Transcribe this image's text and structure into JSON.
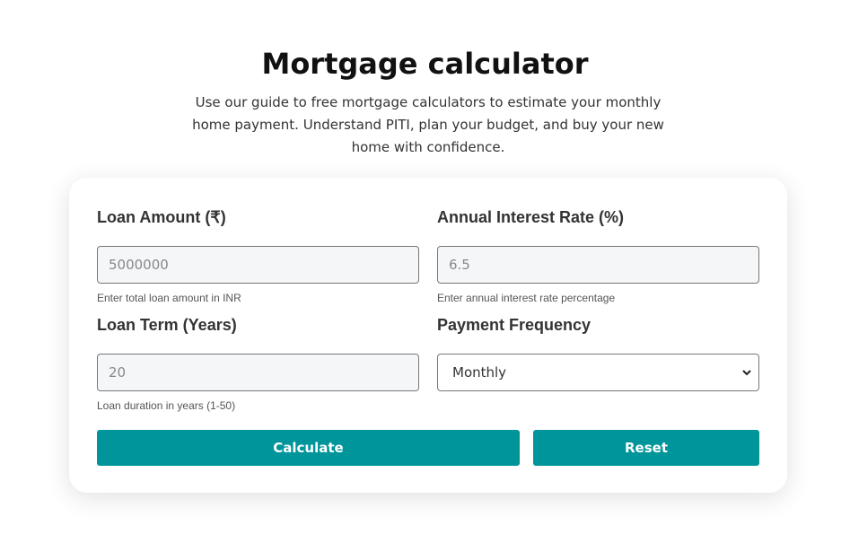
{
  "header": {
    "title": "Mortgage calculator",
    "description": "Use our guide to free mortgage calculators to estimate your monthly home payment. Understand PITI, plan your budget, and buy your new home with confidence."
  },
  "form": {
    "loan_amount": {
      "label": "Loan Amount (₹)",
      "placeholder": "5000000",
      "help": "Enter total loan amount in INR"
    },
    "interest_rate": {
      "label": "Annual Interest Rate (%)",
      "placeholder": "6.5",
      "help": "Enter annual interest rate percentage"
    },
    "loan_term": {
      "label": "Loan Term (Years)",
      "placeholder": "20",
      "help": "Loan duration in years (1-50)"
    },
    "frequency": {
      "label": "Payment Frequency",
      "selected": "Monthly",
      "icon": "chevron-down-icon"
    },
    "calculate_label": "Calculate",
    "reset_label": "Reset"
  },
  "colors": {
    "accent": "#00959b"
  }
}
